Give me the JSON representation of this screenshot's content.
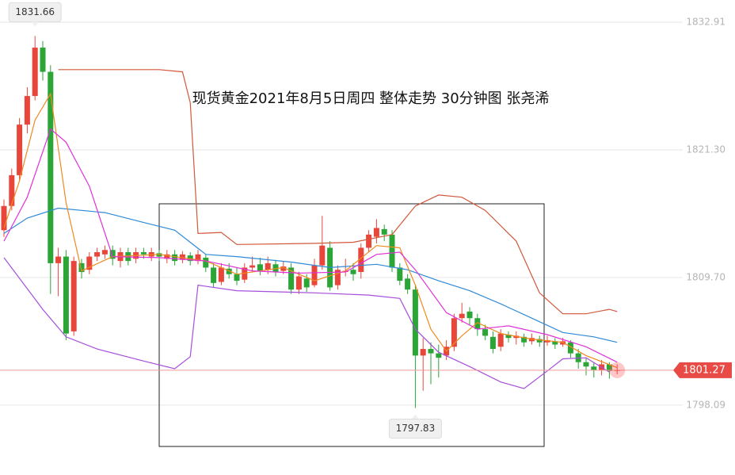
{
  "chart_data": {
    "type": "candlestick",
    "title": "现货黄金2021年8月5日周四 整体走势  30分钟图 张尧浠",
    "ylim": [
      1791.74,
      1834.93
    ],
    "yticks": [
      1832.91,
      {
        "value": 1821.3,
        "label": "1821.30"
      },
      {
        "value": 1809.7,
        "label": "1809.70"
      },
      1798.09
    ],
    "grid": true,
    "up_color": "#e8463a",
    "down_color": "#2aa536",
    "open": [
      1814,
      1816.2,
      1819,
      1823.6,
      1826.2,
      1830.6,
      1828.4,
      1811,
      1811.6,
      1804.8,
      1811,
      1810.4,
      1811.6,
      1811.8,
      1812.2,
      1811.2,
      1812,
      1811.4,
      1812,
      1811.6,
      1811.9,
      1811.4,
      1811.8,
      1811.3,
      1811.7,
      1811.2,
      1811.5,
      1810.6,
      1809.3,
      1810.5,
      1810,
      1809.5,
      1810.6,
      1810.9,
      1810.4,
      1810.9,
      1810.3,
      1810.6,
      1808.6,
      1809.6,
      1809,
      1810.8,
      1812.4,
      1809,
      1810.2,
      1810.4,
      1810.2,
      1812.4,
      1813.4,
      1814.1,
      1813.6,
      1810.6,
      1809.6,
      1808.6,
      1802.6,
      1803.2,
      1802.8,
      1802.6,
      1803.4,
      1806,
      1806.6,
      1806,
      1805,
      1804.3,
      1803.4,
      1804.5,
      1804.2,
      1804.3,
      1803.9,
      1804.1,
      1803.8,
      1803.9,
      1803.6,
      1803.8,
      1802.8,
      1802,
      1801.6,
      1801.3,
      1801.8,
      1801.2
    ],
    "high": [
      1816.8,
      1819.6,
      1824.2,
      1827,
      1831.66,
      1831.2,
      1829,
      1812.4,
      1812.2,
      1811.6,
      1811.4,
      1812,
      1812.4,
      1812.6,
      1812.6,
      1812.4,
      1812.4,
      1812.4,
      1812.4,
      1812.4,
      1812.2,
      1812.2,
      1812.2,
      1812.1,
      1812,
      1812.2,
      1811.8,
      1811,
      1811,
      1811,
      1810.6,
      1811,
      1811.6,
      1811.5,
      1811.6,
      1811.3,
      1811.2,
      1811,
      1810.2,
      1810,
      1811.4,
      1815.3,
      1813,
      1810.8,
      1811.4,
      1811,
      1812.8,
      1814,
      1815,
      1814.5,
      1814,
      1811,
      1810,
      1809,
      1804.2,
      1803.8,
      1803.6,
      1804,
      1806.4,
      1807.4,
      1807,
      1806.4,
      1805.4,
      1804.8,
      1805,
      1804.8,
      1804.8,
      1804.6,
      1804.6,
      1804.4,
      1804.4,
      1804.2,
      1804.2,
      1804,
      1803.2,
      1802.4,
      1802,
      1802.2,
      1802,
      1801.8
    ],
    "low": [
      1813.4,
      1815.8,
      1818.5,
      1822.8,
      1825.8,
      1827.6,
      1808.2,
      1808,
      1804,
      1804.4,
      1809.6,
      1810,
      1811.2,
      1811.4,
      1810.8,
      1810.6,
      1810.8,
      1811,
      1811.4,
      1811.2,
      1811.2,
      1811,
      1810.8,
      1811,
      1810.8,
      1810.9,
      1810.2,
      1808.8,
      1809,
      1809.6,
      1809,
      1809.2,
      1810.2,
      1809.9,
      1810,
      1809.8,
      1810,
      1808.2,
      1808.2,
      1808.4,
      1808.8,
      1810.4,
      1808.5,
      1808.6,
      1809.8,
      1809.4,
      1809.6,
      1812,
      1812.8,
      1813,
      1810.2,
      1809,
      1808.2,
      1797.83,
      1799.4,
      1800,
      1800.6,
      1802.2,
      1803,
      1805.6,
      1805.4,
      1804.4,
      1804,
      1802.8,
      1803,
      1803.8,
      1803.6,
      1803.4,
      1803.6,
      1803.4,
      1803.5,
      1803.2,
      1803.4,
      1802.4,
      1801.4,
      1800.8,
      1800.6,
      1800.8,
      1800.5,
      1800.9
    ],
    "close": [
      1816.2,
      1819,
      1823.6,
      1826.2,
      1830.6,
      1828.4,
      1811,
      1811.6,
      1804.6,
      1811.2,
      1810.2,
      1811.6,
      1812,
      1812.2,
      1811.4,
      1812,
      1811.2,
      1812,
      1811.8,
      1812,
      1811.6,
      1811.8,
      1811.2,
      1811.8,
      1811.2,
      1811.8,
      1810.6,
      1809.2,
      1810.6,
      1810,
      1809.4,
      1810.6,
      1810.8,
      1810.3,
      1811,
      1810.2,
      1810.7,
      1808.6,
      1809.8,
      1808.8,
      1810.8,
      1812.6,
      1808.8,
      1810.4,
      1810.3,
      1810,
      1812.4,
      1813.6,
      1814.2,
      1813.6,
      1810.6,
      1809.4,
      1808.6,
      1802.6,
      1803.2,
      1802.8,
      1802.4,
      1803.4,
      1806,
      1806.4,
      1806,
      1805,
      1804.4,
      1803.2,
      1804.6,
      1804.2,
      1804.4,
      1803.8,
      1804.2,
      1803.8,
      1804,
      1803.6,
      1803.9,
      1802.8,
      1802,
      1801.6,
      1801.3,
      1801.8,
      1801.2,
      1801.27
    ],
    "lines": [
      {
        "color": "#d2583a",
        "x": [
          7,
          20,
          23,
          24,
          25,
          28,
          30,
          40,
          45,
          50,
          53,
          56,
          59,
          62,
          66,
          69,
          72,
          75,
          78,
          79
        ],
        "values": [
          1828.6,
          1828.6,
          1828.4,
          1825.6,
          1813.7,
          1813.8,
          1812.7,
          1812.8,
          1812.9,
          1813.6,
          1816.2,
          1817.2,
          1817,
          1815.8,
          1813,
          1808.3,
          1806.4,
          1806.4,
          1806.8,
          1806.6
        ]
      },
      {
        "color": "#a64fdc",
        "x": [
          0,
          5,
          8,
          12,
          18,
          22,
          24,
          25,
          30,
          40,
          47,
          51,
          53,
          56,
          60,
          64,
          67,
          70,
          72,
          75,
          78
        ],
        "values": [
          1811.5,
          1806.8,
          1804.3,
          1803.2,
          1802.1,
          1801.4,
          1802.5,
          1809,
          1808.5,
          1808.3,
          1808.1,
          1807.8,
          1805,
          1802.9,
          1801.6,
          1800.2,
          1799.6,
          1801.2,
          1802.3,
          1802.4,
          1801.1
        ]
      },
      {
        "color": "#2f8ad8",
        "x": [
          0,
          3,
          7,
          13,
          18,
          22,
          26,
          30,
          37,
          42,
          48,
          52,
          56,
          60,
          64,
          68,
          72,
          76,
          79
        ],
        "values": [
          1813.7,
          1815.1,
          1816,
          1815.6,
          1814.7,
          1814,
          1811.8,
          1811.6,
          1811.1,
          1810.6,
          1810.9,
          1810.4,
          1809.4,
          1808.5,
          1807.3,
          1806,
          1804.7,
          1804.3,
          1803.8
        ]
      },
      {
        "color": "#ef8a1e",
        "x": [
          0,
          2,
          4,
          6,
          8,
          10,
          14,
          20,
          26,
          30,
          36,
          40,
          44,
          48,
          51,
          53,
          55,
          57,
          59,
          61,
          64,
          68,
          72,
          75,
          79
        ],
        "values": [
          1814.2,
          1818.5,
          1824,
          1826.4,
          1816.5,
          1810.3,
          1811.6,
          1811.8,
          1811.2,
          1810,
          1810.6,
          1809.4,
          1810.3,
          1812.6,
          1812.4,
          1809,
          1805,
          1803,
          1804.4,
          1805.6,
          1804.6,
          1804.1,
          1803.8,
          1802.6,
          1801.5
        ]
      },
      {
        "color": "#e032d8",
        "x": [
          0,
          3,
          6,
          8,
          11,
          14,
          20,
          26,
          32,
          38,
          44,
          48,
          51,
          53,
          57,
          61,
          65,
          70,
          75,
          79
        ],
        "values": [
          1813,
          1817,
          1823.2,
          1822,
          1818,
          1811.6,
          1811.5,
          1811.2,
          1810.3,
          1810.1,
          1810.2,
          1811.8,
          1812,
          1810.4,
          1806.5,
          1805,
          1805.3,
          1804.5,
          1803.4,
          1802
        ]
      }
    ]
  }
}
